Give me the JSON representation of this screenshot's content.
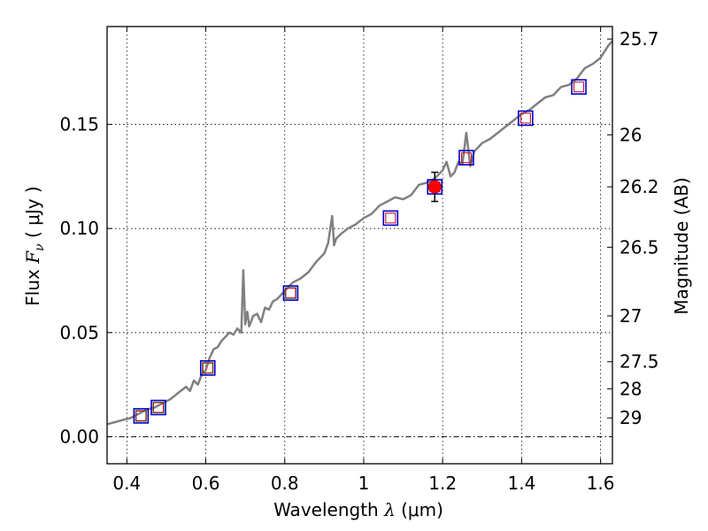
{
  "chart_data": {
    "type": "line",
    "xlabel_prefix": "Wavelength",
    "xlabel_symbol": "λ",
    "xlabel_unit": "(μm)",
    "ylabel_prefix": "Flux",
    "ylabel_symbol": "F",
    "ylabel_subscript": "ν",
    "ylabel_unit": "( μJy )",
    "y2label": "Magnitude (AB)",
    "xlim": [
      0.35,
      1.63
    ],
    "ylim": [
      -0.013,
      0.197
    ],
    "xticks": [
      0.4,
      0.6,
      0.8,
      1.0,
      1.2,
      1.4,
      1.6
    ],
    "xtick_labels": [
      "0.4",
      "0.6",
      "0.8",
      "1",
      "1.2",
      "1.4",
      "1.6"
    ],
    "yticks": [
      0.0,
      0.05,
      0.1,
      0.15
    ],
    "ytick_labels": [
      "0.00",
      "0.05",
      "0.10",
      "0.15"
    ],
    "right_ticks": [
      {
        "label": "25.7",
        "flux": 0.191
      },
      {
        "label": "26",
        "flux": 0.145
      },
      {
        "label": "26.2",
        "flux": 0.12
      },
      {
        "label": "26.5",
        "flux": 0.091
      },
      {
        "label": "27",
        "flux": 0.058
      },
      {
        "label": "27.5",
        "flux": 0.036
      },
      {
        "label": "28",
        "flux": 0.023
      },
      {
        "label": "29",
        "flux": 0.009
      }
    ],
    "grid": true,
    "zero_line": 0.0,
    "sed_model": {
      "color": "#808080",
      "x": [
        0.35,
        0.37,
        0.39,
        0.41,
        0.43,
        0.45,
        0.47,
        0.49,
        0.51,
        0.53,
        0.55,
        0.56,
        0.57,
        0.58,
        0.59,
        0.6,
        0.61,
        0.62,
        0.63,
        0.64,
        0.65,
        0.66,
        0.67,
        0.68,
        0.69,
        0.695,
        0.7,
        0.705,
        0.71,
        0.72,
        0.73,
        0.74,
        0.75,
        0.76,
        0.77,
        0.78,
        0.79,
        0.8,
        0.82,
        0.84,
        0.86,
        0.88,
        0.9,
        0.91,
        0.92,
        0.925,
        0.93,
        0.94,
        0.96,
        0.98,
        1.0,
        1.02,
        1.04,
        1.06,
        1.08,
        1.1,
        1.12,
        1.14,
        1.16,
        1.18,
        1.2,
        1.21,
        1.22,
        1.23,
        1.24,
        1.25,
        1.26,
        1.27,
        1.28,
        1.3,
        1.32,
        1.34,
        1.36,
        1.38,
        1.4,
        1.42,
        1.44,
        1.46,
        1.48,
        1.5,
        1.52,
        1.54,
        1.56,
        1.58,
        1.6,
        1.62,
        1.63
      ],
      "y": [
        0.006,
        0.007,
        0.008,
        0.009,
        0.011,
        0.013,
        0.014,
        0.016,
        0.018,
        0.021,
        0.024,
        0.022,
        0.027,
        0.025,
        0.03,
        0.032,
        0.038,
        0.042,
        0.043,
        0.046,
        0.048,
        0.05,
        0.049,
        0.052,
        0.05,
        0.08,
        0.054,
        0.06,
        0.053,
        0.058,
        0.059,
        0.055,
        0.062,
        0.061,
        0.065,
        0.066,
        0.068,
        0.07,
        0.074,
        0.076,
        0.079,
        0.084,
        0.088,
        0.093,
        0.106,
        0.092,
        0.095,
        0.097,
        0.1,
        0.102,
        0.105,
        0.107,
        0.111,
        0.113,
        0.115,
        0.114,
        0.116,
        0.121,
        0.122,
        0.124,
        0.128,
        0.132,
        0.125,
        0.127,
        0.132,
        0.131,
        0.146,
        0.13,
        0.137,
        0.141,
        0.143,
        0.146,
        0.149,
        0.152,
        0.155,
        0.157,
        0.16,
        0.163,
        0.164,
        0.168,
        0.169,
        0.172,
        0.177,
        0.179,
        0.182,
        0.188,
        0.19
      ]
    },
    "model_photometry": {
      "color": "#c0001a",
      "x": [
        0.436,
        0.48,
        0.605,
        0.815,
        1.068,
        1.18,
        1.26,
        1.41,
        1.545
      ],
      "y": [
        0.01,
        0.014,
        0.033,
        0.069,
        0.105,
        0.12,
        0.134,
        0.153,
        0.168
      ]
    },
    "observed_photometry_outer": {
      "color": "#0000cc",
      "x": [
        0.436,
        0.48,
        0.605,
        0.815,
        1.068,
        1.18,
        1.26,
        1.41,
        1.545
      ],
      "y": [
        0.01,
        0.014,
        0.033,
        0.069,
        0.105,
        0.12,
        0.134,
        0.153,
        0.168
      ]
    },
    "upper_limit_squares": {
      "color": "#2ca02c",
      "x": [
        0.436,
        0.48,
        0.605,
        0.815
      ],
      "y": [
        0.01,
        0.014,
        0.033,
        0.069
      ]
    },
    "measured_point": {
      "color": "#ff0000",
      "x": 1.18,
      "y": 0.12,
      "yerr": [
        0.113,
        0.127
      ]
    }
  }
}
